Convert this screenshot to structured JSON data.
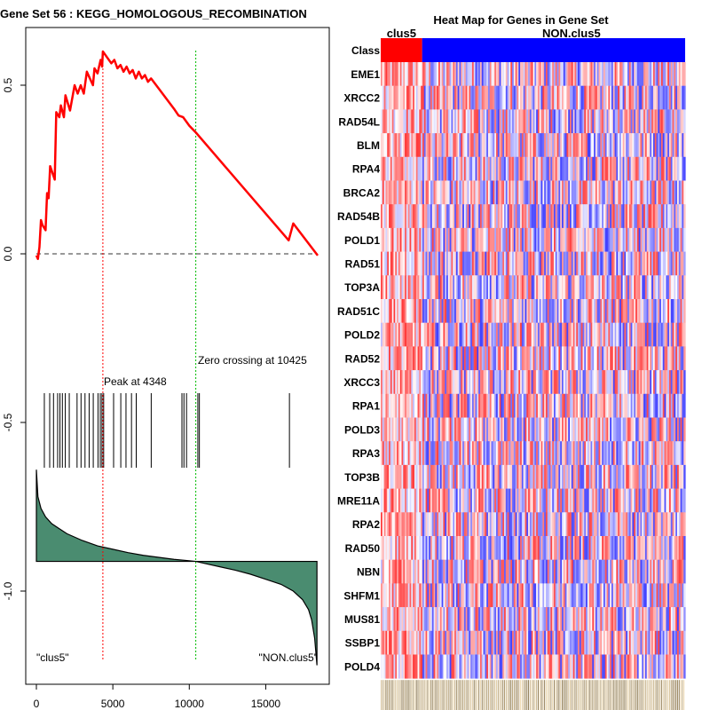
{
  "colors": {
    "es_curve": "#ff0000",
    "peak_line": "#ff0000",
    "zero_line": "#00bb00",
    "metric_fill": "#4a8c70",
    "class_a": "#ff0000",
    "class_b": "#0000ff",
    "heat_high": "#ff0000",
    "heat_low": "#0000ff"
  },
  "chart_data": [
    {
      "type": "line",
      "title": "Gene Set  56 : KEGG_HOMOLOGOUS_RECOMBINATION",
      "xlim": [
        0,
        18400
      ],
      "ylim": [
        -1.27,
        0.66
      ],
      "x_ticks": [
        0,
        5000,
        10000,
        15000
      ],
      "x_tick_labels": [
        "0",
        "5000",
        "10000",
        "15000"
      ],
      "y_ticks": [
        0.5,
        0.0,
        -0.5,
        -1.0
      ],
      "y_tick_labels": [
        "0.5",
        "0.0",
        "-0.5",
        "-1.0"
      ],
      "series": [
        {
          "name": "running enrichment score",
          "x": [
            0,
            100,
            200,
            300,
            400,
            600,
            700,
            800,
            900,
            1200,
            1300,
            1500,
            1600,
            1800,
            1900,
            2200,
            2500,
            2700,
            2900,
            3100,
            3300,
            3700,
            3800,
            4000,
            4200,
            4300,
            4348,
            4900,
            5100,
            5300,
            5500,
            5700,
            5900,
            6100,
            6300,
            6500,
            6700,
            6900,
            7100,
            7300,
            7500,
            8000,
            9000,
            9300,
            9600,
            10000,
            10425,
            16500,
            16800,
            18400
          ],
          "y": [
            -0.005,
            -0.015,
            0.02,
            0.1,
            0.085,
            0.07,
            0.18,
            0.165,
            0.26,
            0.22,
            0.42,
            0.405,
            0.44,
            0.405,
            0.47,
            0.425,
            0.5,
            0.475,
            0.5,
            0.475,
            0.54,
            0.5,
            0.55,
            0.535,
            0.575,
            0.555,
            0.6,
            0.565,
            0.575,
            0.55,
            0.56,
            0.54,
            0.555,
            0.535,
            0.545,
            0.52,
            0.54,
            0.52,
            0.53,
            0.51,
            0.52,
            0.49,
            0.43,
            0.41,
            0.405,
            0.38,
            0.36,
            0.04,
            0.09,
            -0.005
          ]
        }
      ],
      "baseline": 0.0,
      "peak": {
        "x": 4348,
        "label": "Peak at 4348"
      },
      "zero_crossing": {
        "x": 10425,
        "label": "Zero crossing at 10425"
      },
      "hit_positions": [
        520,
        870,
        1120,
        1390,
        1540,
        1700,
        1890,
        2150,
        2660,
        2920,
        3180,
        3450,
        3720,
        4030,
        4180,
        4290,
        4400,
        5050,
        5520,
        5860,
        6220,
        6530,
        7510,
        9520,
        9650,
        9820,
        10560,
        10660,
        16550
      ],
      "ranked_metric": {
        "type": "area",
        "x": [
          0,
          100,
          300,
          600,
          1000,
          1500,
          2000,
          3000,
          4000,
          5000,
          6000,
          7000,
          8000,
          9000,
          10000,
          10425,
          11000,
          12000,
          13000,
          14000,
          15000,
          16000,
          16800,
          17400,
          17800,
          18000,
          18200,
          18350
        ],
        "y": [
          -0.64,
          -0.72,
          -0.755,
          -0.78,
          -0.8,
          -0.815,
          -0.83,
          -0.85,
          -0.866,
          -0.876,
          -0.886,
          -0.894,
          -0.9,
          -0.906,
          -0.91,
          -0.912,
          -0.918,
          -0.928,
          -0.938,
          -0.95,
          -0.965,
          -0.98,
          -1.0,
          -1.025,
          -1.055,
          -1.085,
          -1.14,
          -1.22
        ],
        "baseline": -0.912
      },
      "group_labels": {
        "left": "\"clus5\"",
        "right": "\"NON.clus5\""
      }
    },
    {
      "type": "heatmap",
      "title": "Heat Map for Genes in Gene Set",
      "class_label": "Class",
      "class_groups": [
        {
          "name": "clus5",
          "fraction": 0.136
        },
        {
          "name": "NON.clus5",
          "fraction": 0.864
        }
      ],
      "rows": [
        "EME1",
        "XRCC2",
        "RAD54L",
        "BLM",
        "RPA4",
        "BRCA2",
        "RAD54B",
        "POLD1",
        "RAD51",
        "TOP3A",
        "RAD51C",
        "POLD2",
        "RAD52",
        "XRCC3",
        "RPA1",
        "POLD3",
        "RPA3",
        "TOP3B",
        "MRE11A",
        "RPA2",
        "RAD50",
        "NBN",
        "SHFM1",
        "MUS81",
        "SSBP1",
        "POLD4"
      ]
    }
  ]
}
